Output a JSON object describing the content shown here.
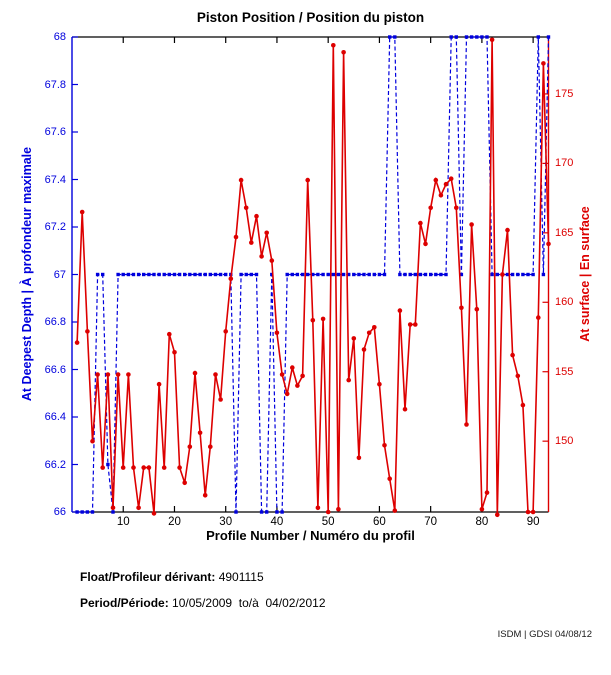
{
  "footer": {
    "float_label": "Float/Profileur dérivant:",
    "float_value": "4901115",
    "period_label": "Period/Période:",
    "period_value": "10/05/2009  to/à  04/02/2012",
    "credit": "ISDM | GDSI 04/08/12"
  },
  "chart_data": {
    "type": "line",
    "title": "Piston Position / Position du piston",
    "xlabel": "Profile Number / Numéro du profil",
    "ylabel_left": "At Deepest Depth | À profondeur maximale",
    "ylabel_right": "At surface | En surface",
    "xlim": [
      0,
      93
    ],
    "x_ticks": [
      10,
      20,
      30,
      40,
      50,
      60,
      70,
      80,
      90
    ],
    "ylim_left": [
      66,
      68
    ],
    "y_ticks_left": [
      66,
      66.2,
      66.4,
      66.6,
      66.8,
      67,
      67.2,
      67.4,
      67.6,
      67.8,
      68
    ],
    "ylim_right": [
      144.9,
      179.1
    ],
    "y_ticks_right": [
      150,
      155,
      160,
      165,
      170,
      175
    ],
    "colors": {
      "deep": "#0000dd",
      "surface": "#dd0000",
      "frame": "#000000"
    },
    "grid": false,
    "legend": "none",
    "x": [
      1,
      2,
      3,
      4,
      5,
      6,
      7,
      8,
      9,
      10,
      11,
      12,
      13,
      14,
      15,
      16,
      17,
      18,
      19,
      20,
      21,
      22,
      23,
      24,
      25,
      26,
      27,
      28,
      29,
      30,
      31,
      32,
      33,
      34,
      35,
      36,
      37,
      38,
      39,
      40,
      41,
      42,
      43,
      44,
      45,
      46,
      47,
      48,
      49,
      50,
      51,
      52,
      53,
      54,
      55,
      56,
      57,
      58,
      59,
      60,
      61,
      62,
      63,
      64,
      65,
      66,
      67,
      68,
      69,
      70,
      71,
      72,
      73,
      74,
      75,
      76,
      77,
      78,
      79,
      80,
      81,
      82,
      83,
      84,
      85,
      86,
      87,
      88,
      89,
      90,
      91,
      92,
      93
    ],
    "series": [
      {
        "name": "At Deepest Depth | À profondeur maximale",
        "axis": "left",
        "marker": "square",
        "values": [
          66,
          66,
          66,
          66,
          67,
          67,
          66.2,
          66,
          67,
          67,
          67,
          67,
          67,
          67,
          67,
          67,
          67,
          67,
          67,
          67,
          67,
          67,
          67,
          67,
          67,
          67,
          67,
          67,
          67,
          67,
          67,
          66,
          67,
          67,
          67,
          67,
          66,
          66,
          67,
          66,
          66,
          67,
          67,
          67,
          67,
          67,
          67,
          67,
          67,
          67,
          67,
          67,
          67,
          67,
          67,
          67,
          67,
          67,
          67,
          67,
          67,
          68,
          68,
          67,
          67,
          67,
          67,
          67,
          67,
          67,
          67,
          67,
          67,
          68,
          68,
          67,
          68,
          68,
          68,
          68,
          68,
          67,
          67,
          67,
          67,
          67,
          67,
          67,
          67,
          67,
          68,
          67,
          68
        ]
      },
      {
        "name": "At surface | En surface",
        "axis": "right",
        "marker": "circle",
        "values": [
          157.1,
          166.5,
          157.9,
          150.0,
          154.8,
          148.1,
          154.8,
          145.2,
          154.8,
          148.1,
          154.8,
          148.1,
          145.2,
          148.1,
          148.1,
          144.8,
          154.1,
          148.1,
          157.7,
          156.4,
          148.1,
          147.0,
          149.6,
          154.9,
          150.6,
          146.1,
          149.6,
          154.8,
          153.0,
          157.9,
          161.7,
          164.7,
          168.8,
          166.8,
          164.3,
          166.2,
          163.3,
          165.0,
          163.0,
          157.8,
          154.8,
          153.4,
          155.3,
          154.0,
          154.7,
          168.8,
          158.7,
          145.2,
          158.8,
          144.9,
          178.5,
          145.1,
          178.0,
          154.4,
          157.4,
          148.8,
          156.6,
          157.8,
          158.2,
          154.1,
          149.7,
          147.3,
          145.0,
          159.4,
          152.3,
          158.4,
          158.4,
          165.7,
          164.2,
          166.8,
          168.8,
          167.7,
          168.5,
          168.9,
          166.8,
          159.6,
          151.2,
          165.6,
          159.5,
          145.1,
          146.3,
          178.9,
          144.7,
          162.0,
          165.2,
          156.2,
          154.7,
          152.6,
          144.9,
          144.9,
          158.9,
          177.2,
          164.2
        ]
      }
    ]
  }
}
